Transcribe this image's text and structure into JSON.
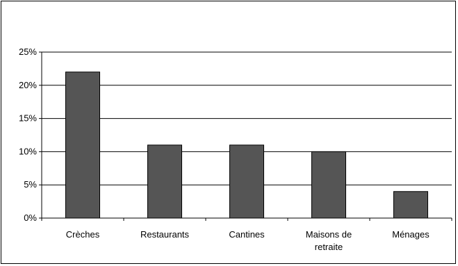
{
  "chart_data": {
    "type": "bar",
    "title": "",
    "xlabel": "",
    "ylabel": "",
    "categories": [
      "Crèches",
      "Restaurants",
      "Cantines",
      "Maisons de retraite",
      "Ménages"
    ],
    "category_lines": [
      [
        "Crèches"
      ],
      [
        "Restaurants"
      ],
      [
        "Cantines"
      ],
      [
        "Maisons de",
        "retraite"
      ],
      [
        "Ménages"
      ]
    ],
    "values": [
      22,
      11,
      11,
      10,
      4
    ],
    "ylim": [
      0,
      25
    ],
    "yticks": [
      0,
      5,
      10,
      15,
      20,
      25
    ],
    "ytick_labels": [
      "0%",
      "5%",
      "10%",
      "15%",
      "20%",
      "25%"
    ],
    "grid": true,
    "legend": "none",
    "bar_color": "#555555"
  }
}
